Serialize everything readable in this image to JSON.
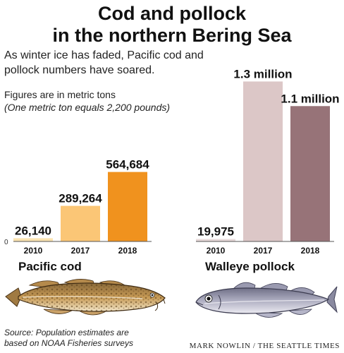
{
  "header": {
    "title_line1": "Cod and pollock",
    "title_line2": "in the northern Bering Sea",
    "subtitle": "As winter ice has faded, Pacific cod and pollock numbers have soared.",
    "units_main": "Figures are in metric tons",
    "units_note": "(One metric ton equals 2,200 pounds)"
  },
  "chart_data": {
    "type": "bar",
    "zero_label": "0",
    "groups": [
      {
        "name": "Pacific cod",
        "categories": [
          "2010",
          "2017",
          "2018"
        ],
        "values": [
          26140,
          289264,
          564684
        ],
        "value_labels": [
          "26,140",
          "289,264",
          "564,684"
        ],
        "colors": [
          "#fbe3b0",
          "#fbc676",
          "#f0921e"
        ]
      },
      {
        "name": "Walleye pollock",
        "categories": [
          "2010",
          "2017",
          "2018"
        ],
        "values": [
          19975,
          1300000,
          1100000
        ],
        "value_labels": [
          "19,975",
          "1.3 million",
          "1.1 million"
        ],
        "colors": [
          "#e7d9d9",
          "#dcc7c7",
          "#977378"
        ]
      }
    ],
    "ylim": [
      0,
      1400000
    ]
  },
  "labels": {
    "cod": "Pacific cod",
    "pollock": "Walleye pollock"
  },
  "footer": {
    "source": "Source: Population estimates are based on NOAA Fisheries surveys",
    "credit": "MARK NOWLIN / THE SEATTLE TIMES"
  },
  "icons": [
    "pacific-cod-illustration",
    "walleye-pollock-illustration"
  ]
}
